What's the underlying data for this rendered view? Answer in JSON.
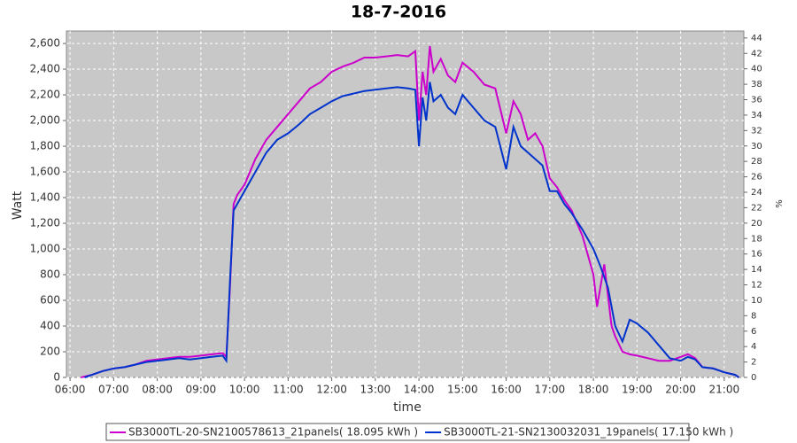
{
  "chart_data": {
    "type": "line",
    "title": "18-7-2016",
    "x_label": "time",
    "y_label": "Watt",
    "y2_label": "%",
    "xlim": [
      355,
      1287
    ],
    "xticks": [
      {
        "value": 360,
        "label": "06:00"
      },
      {
        "value": 420,
        "label": "07:00"
      },
      {
        "value": 480,
        "label": "08:00"
      },
      {
        "value": 540,
        "label": "09:00"
      },
      {
        "value": 600,
        "label": "10:00"
      },
      {
        "value": 660,
        "label": "11:00"
      },
      {
        "value": 720,
        "label": "12:00"
      },
      {
        "value": 780,
        "label": "13:00"
      },
      {
        "value": 840,
        "label": "14:00"
      },
      {
        "value": 900,
        "label": "15:00"
      },
      {
        "value": 960,
        "label": "16:00"
      },
      {
        "value": 1020,
        "label": "17:00"
      },
      {
        "value": 1080,
        "label": "18:00"
      },
      {
        "value": 1140,
        "label": "19:00"
      },
      {
        "value": 1200,
        "label": "20:00"
      },
      {
        "value": 1260,
        "label": "21:00"
      }
    ],
    "ylim": [
      0,
      2697
    ],
    "yticks": [
      0,
      {
        "value": 200,
        "label": "200"
      },
      {
        "value": 400,
        "label": "400"
      },
      {
        "value": 600,
        "label": "600"
      },
      {
        "value": 800,
        "label": "800"
      },
      {
        "value": 1000,
        "label": "1,000"
      },
      {
        "value": 1200,
        "label": "1,200"
      },
      {
        "value": 1400,
        "label": "1,400"
      },
      {
        "value": 1600,
        "label": "1,600"
      },
      {
        "value": 1800,
        "label": "1,800"
      },
      {
        "value": 2000,
        "label": "2,000"
      },
      {
        "value": 2200,
        "label": "2,200"
      },
      {
        "value": 2400,
        "label": "2,400"
      },
      {
        "value": 2600,
        "label": "2,600"
      }
    ],
    "y2lim": [
      0,
      44.9
    ],
    "y2ticks": [
      0,
      2,
      4,
      6,
      8,
      10,
      12,
      14,
      16,
      18,
      20,
      22,
      24,
      26,
      28,
      30,
      32,
      34,
      36,
      38,
      40,
      42,
      44
    ],
    "grid": true,
    "legend": "bottom",
    "series": [
      {
        "name": "SB3000TL-20-SN2100578613_21panels( 18.095 kWh )",
        "color": "#cc00cc",
        "x": [
          375,
          390,
          405,
          420,
          435,
          450,
          465,
          480,
          495,
          510,
          525,
          540,
          555,
          570,
          575,
          580,
          585,
          590,
          600,
          615,
          630,
          645,
          660,
          675,
          690,
          705,
          720,
          735,
          750,
          765,
          780,
          795,
          810,
          825,
          835,
          840,
          845,
          850,
          855,
          860,
          870,
          880,
          890,
          900,
          915,
          930,
          945,
          960,
          970,
          980,
          990,
          1000,
          1010,
          1020,
          1030,
          1040,
          1050,
          1065,
          1080,
          1085,
          1095,
          1105,
          1110,
          1120,
          1130,
          1140,
          1155,
          1170,
          1185,
          1200,
          1210,
          1220,
          1230,
          1245,
          1260,
          1275,
          1280
        ],
        "values": [
          0,
          20,
          50,
          70,
          80,
          100,
          130,
          140,
          150,
          160,
          160,
          170,
          180,
          190,
          160,
          700,
          1350,
          1420,
          1500,
          1700,
          1850,
          1950,
          2050,
          2150,
          2250,
          2300,
          2380,
          2420,
          2450,
          2490,
          2490,
          2500,
          2510,
          2500,
          2540,
          2000,
          2380,
          2200,
          2580,
          2380,
          2480,
          2350,
          2300,
          2450,
          2380,
          2280,
          2250,
          1900,
          2150,
          2050,
          1850,
          1900,
          1800,
          1550,
          1480,
          1380,
          1300,
          1100,
          800,
          550,
          880,
          400,
          320,
          200,
          180,
          170,
          150,
          130,
          130,
          160,
          180,
          150,
          80,
          70,
          40,
          20,
          0
        ]
      },
      {
        "name": "SB3000TL-21-SN2130032031_19panels( 17.150 kWh )",
        "color": "#0033cc",
        "x": [
          380,
          390,
          405,
          420,
          435,
          450,
          465,
          480,
          495,
          510,
          525,
          540,
          555,
          570,
          575,
          580,
          585,
          590,
          600,
          615,
          630,
          645,
          660,
          675,
          690,
          705,
          720,
          735,
          750,
          765,
          780,
          795,
          810,
          825,
          835,
          840,
          845,
          850,
          855,
          860,
          870,
          880,
          890,
          900,
          915,
          930,
          945,
          960,
          970,
          980,
          990,
          1000,
          1010,
          1020,
          1030,
          1040,
          1050,
          1065,
          1080,
          1090,
          1100,
          1110,
          1120,
          1130,
          1140,
          1155,
          1170,
          1185,
          1200,
          1210,
          1220,
          1230,
          1245,
          1260,
          1275,
          1280
        ],
        "values": [
          0,
          20,
          50,
          70,
          80,
          100,
          120,
          130,
          140,
          150,
          140,
          150,
          160,
          170,
          130,
          750,
          1300,
          1350,
          1450,
          1600,
          1750,
          1850,
          1900,
          1970,
          2050,
          2100,
          2150,
          2190,
          2210,
          2230,
          2240,
          2250,
          2260,
          2250,
          2240,
          1800,
          2180,
          2000,
          2300,
          2150,
          2200,
          2100,
          2050,
          2200,
          2100,
          2000,
          1950,
          1620,
          1950,
          1800,
          1750,
          1700,
          1650,
          1450,
          1450,
          1350,
          1280,
          1150,
          1000,
          860,
          700,
          400,
          280,
          450,
          420,
          350,
          250,
          150,
          130,
          160,
          140,
          80,
          70,
          40,
          20,
          0
        ]
      }
    ]
  }
}
